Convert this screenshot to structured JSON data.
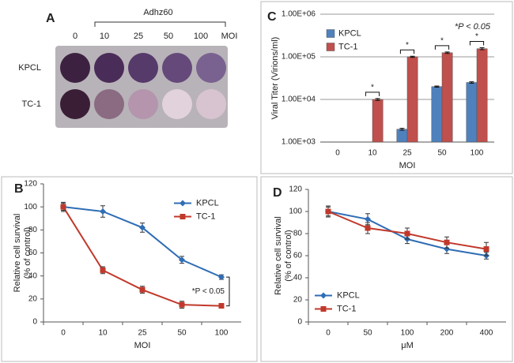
{
  "plate": {
    "panel_label": "A",
    "header": "Adhz60",
    "columns": [
      "0",
      "10",
      "25",
      "50",
      "100"
    ],
    "unit": "MOI",
    "rows": [
      "KPCL",
      "TC-1"
    ]
  },
  "chart_data": [
    {
      "panel_label": "B",
      "type": "line",
      "categories": [
        "0",
        "10",
        "25",
        "50",
        "100"
      ],
      "xlabel": "MOI",
      "ylabel": [
        "Relative cell survival",
        "(% of control)"
      ],
      "ylim": [
        0,
        120
      ],
      "yticks": [
        0,
        20,
        40,
        60,
        80,
        100,
        120
      ],
      "grid": false,
      "legend": "upper right",
      "annotation": "*P < 0.05",
      "series": [
        {
          "name": "KPCL",
          "color": "#2f6db5",
          "marker": "diamond",
          "values": [
            100,
            96,
            82,
            54,
            39
          ],
          "errors": [
            4,
            5,
            4,
            3,
            2
          ]
        },
        {
          "name": "TC-1",
          "color": "#c0392b",
          "marker": "square",
          "values": [
            100,
            45,
            28,
            15,
            14
          ],
          "errors": [
            3,
            3,
            3,
            3,
            2
          ]
        }
      ]
    },
    {
      "panel_label": "C",
      "type": "bar",
      "categories": [
        "0",
        "10",
        "25",
        "50",
        "100"
      ],
      "xlabel": "MOI",
      "ylabel": [
        "Viral Titer (Virions/ml)"
      ],
      "log_scale": true,
      "ylim": [
        1000,
        1000000
      ],
      "yticks": [
        {
          "value": 1000,
          "label": "1.00E+03"
        },
        {
          "value": 10000,
          "label": "1.00E+04"
        },
        {
          "value": 100000,
          "label": "1.00E+05"
        },
        {
          "value": 1000000,
          "label": "1.00E+06"
        }
      ],
      "grid": true,
      "legend": "upper left",
      "annotation": "*P < 0.05",
      "sig_marks": [
        null,
        "*",
        "*",
        "*",
        "*"
      ],
      "series": [
        {
          "name": "KPCL",
          "color": "#4f81bd",
          "values": [
            null,
            null,
            2000,
            20000,
            25000
          ],
          "errors": [
            null,
            null,
            100,
            600,
            1000
          ]
        },
        {
          "name": "TC-1",
          "color": "#c0504d",
          "values": [
            null,
            10000,
            100000,
            125000,
            155000
          ],
          "errors": [
            null,
            500,
            3000,
            5000,
            8000
          ]
        }
      ]
    },
    {
      "panel_label": "D",
      "type": "line",
      "categories": [
        "0",
        "50",
        "100",
        "200",
        "400"
      ],
      "xlabel": "μM",
      "ylabel": [
        "Relative cell survival",
        "(% of control)"
      ],
      "ylim": [
        0,
        120
      ],
      "yticks": [
        0,
        20,
        40,
        60,
        80,
        100,
        120
      ],
      "grid": false,
      "legend": "lower left",
      "series": [
        {
          "name": "KPCL",
          "color": "#2f6db5",
          "marker": "diamond",
          "values": [
            100,
            93,
            75,
            66,
            60
          ],
          "errors": [
            5,
            5,
            4,
            4,
            3
          ]
        },
        {
          "name": "TC-1",
          "color": "#c0392b",
          "marker": "square",
          "values": [
            100,
            85,
            80,
            72,
            66
          ],
          "errors": [
            4,
            5,
            5,
            5,
            6
          ]
        }
      ]
    }
  ]
}
